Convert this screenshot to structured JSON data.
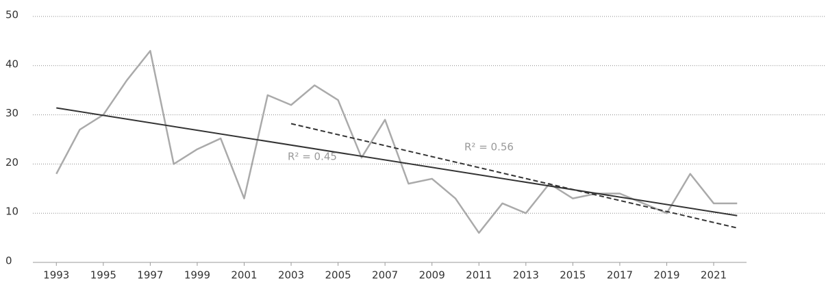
{
  "chart_data": {
    "type": "line",
    "x": [
      1993,
      1994,
      1995,
      1996,
      1997,
      1998,
      1999,
      2000,
      2001,
      2002,
      2003,
      2004,
      2005,
      2006,
      2007,
      2008,
      2009,
      2010,
      2011,
      2012,
      2013,
      2014,
      2015,
      2016,
      2017,
      2018,
      2019,
      2020,
      2021,
      2022
    ],
    "series": [
      {
        "color": "#aaaaaa",
        "values": [
          18,
          27,
          30,
          37,
          43,
          20,
          23,
          25.2,
          13,
          34,
          32,
          36,
          33,
          21.3,
          29,
          16,
          17,
          13,
          6,
          12,
          10,
          16,
          13,
          14,
          14,
          12,
          10,
          18,
          12,
          12
        ]
      }
    ],
    "trendlines": [
      {
        "label": "R² = 0.45",
        "x": [
          1993,
          2022
        ],
        "values": [
          31.4,
          9.5
        ],
        "color": "#333333",
        "dashed": false
      },
      {
        "label": "R² = 0.56",
        "x": [
          2003,
          2022
        ],
        "values": [
          28.2,
          7
        ],
        "color": "#333333",
        "dashed": true
      }
    ],
    "xlim": [
      1992,
      2022.4
    ],
    "xticks": [
      1993,
      1995,
      1997,
      1999,
      2001,
      2003,
      2005,
      2007,
      2009,
      2011,
      2013,
      2015,
      2017,
      2019,
      2021
    ],
    "ylim": [
      0,
      50
    ],
    "yticks": [
      0,
      10,
      20,
      30,
      40,
      50
    ],
    "grid": true
  }
}
